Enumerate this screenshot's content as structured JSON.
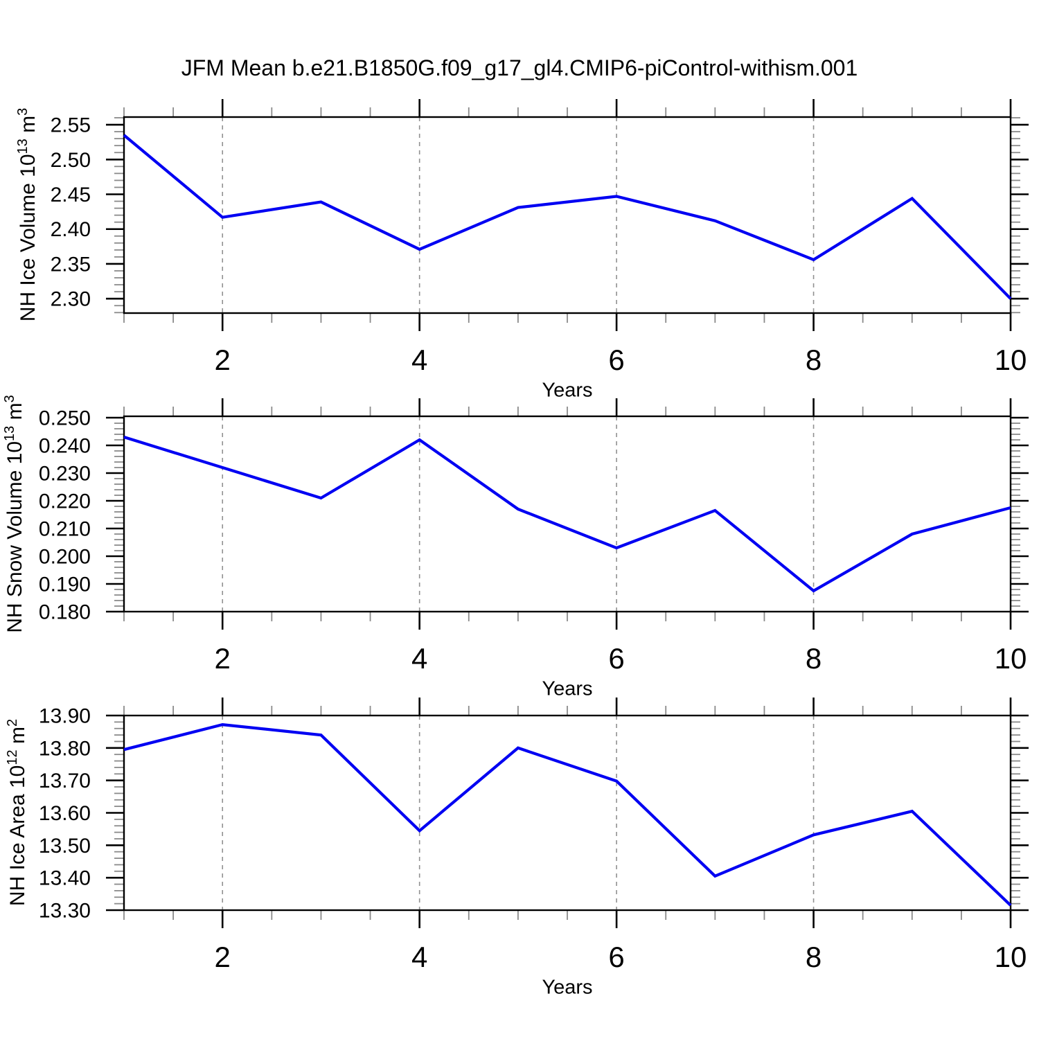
{
  "title": "JFM Mean b.e21.B1850G.f09_g17_gl4.CMIP6-piControl-withism.001",
  "xlabel": "Years",
  "colors": {
    "background": "#ffffff",
    "line": "#0000f2",
    "axis": "#000000",
    "grid": "#909090",
    "minor_tick": "#8a8a8a",
    "text": "#000000"
  },
  "chart_data": [
    {
      "type": "line",
      "id": "nh-ice-volume",
      "ylabel_plain": "NH Ice Volume 10^13 m^3",
      "ylabel_parts": {
        "base": "NH Ice Volume 10",
        "exp": "13",
        "unit": " m",
        "unit_exp": "3"
      },
      "xlabel": "Years",
      "x": [
        1,
        2,
        3,
        4,
        5,
        6,
        7,
        8,
        9,
        10
      ],
      "values": [
        2.535,
        2.417,
        2.439,
        2.371,
        2.431,
        2.447,
        2.412,
        2.356,
        2.444,
        2.3
      ],
      "ylim": [
        2.2793,
        2.561
      ],
      "xlim": [
        1,
        10
      ],
      "yticks": {
        "major_values": [
          2.55,
          2.5,
          2.45,
          2.4,
          2.35,
          2.3
        ],
        "major_labels": [
          "2.55",
          "2.50",
          "2.45",
          "2.40",
          "2.35",
          "2.30"
        ],
        "minor_step": 0.01
      },
      "xticks": {
        "major": [
          2,
          4,
          6,
          8,
          10
        ],
        "major_labels": [
          "2",
          "4",
          "6",
          "8",
          "10"
        ],
        "minor_step": 0.5
      },
      "grid": true,
      "grid_years": [
        2,
        4,
        6,
        8
      ]
    },
    {
      "type": "line",
      "id": "nh-snow-volume",
      "ylabel_plain": "NH Snow Volume 10^13 m^3",
      "ylabel_parts": {
        "base": "NH Snow Volume 10",
        "exp": "13",
        "unit": " m",
        "unit_exp": "3"
      },
      "xlabel": "Years",
      "x": [
        1,
        2,
        3,
        4,
        5,
        6,
        7,
        8,
        9,
        10
      ],
      "values": [
        0.243,
        0.232,
        0.221,
        0.242,
        0.217,
        0.203,
        0.2165,
        0.1875,
        0.208,
        0.2175
      ],
      "ylim": [
        0.18,
        0.2505
      ],
      "xlim": [
        1,
        10
      ],
      "yticks": {
        "major_values": [
          0.25,
          0.24,
          0.23,
          0.22,
          0.21,
          0.2,
          0.19,
          0.18
        ],
        "major_labels": [
          "0.250",
          "0.240",
          "0.230",
          "0.220",
          "0.210",
          "0.200",
          "0.190",
          "0.180"
        ],
        "minor_step": 0.002
      },
      "xticks": {
        "major": [
          2,
          4,
          6,
          8,
          10
        ],
        "major_labels": [
          "2",
          "4",
          "6",
          "8",
          "10"
        ],
        "minor_step": 0.5
      },
      "grid": true,
      "grid_years": [
        2,
        4,
        6,
        8
      ]
    },
    {
      "type": "line",
      "id": "nh-ice-area",
      "ylabel_plain": "NH Ice Area 10^12 m^2",
      "ylabel_parts": {
        "base": "NH Ice Area 10",
        "exp": "12",
        "unit": " m",
        "unit_exp": "2"
      },
      "xlabel": "Years",
      "x": [
        1,
        2,
        3,
        4,
        5,
        6,
        7,
        8,
        9,
        10
      ],
      "values": [
        13.795,
        13.872,
        13.84,
        13.545,
        13.8,
        13.698,
        13.405,
        13.532,
        13.605,
        13.315
      ],
      "ylim": [
        13.3,
        13.9
      ],
      "xlim": [
        1,
        10
      ],
      "yticks": {
        "major_values": [
          13.9,
          13.8,
          13.7,
          13.6,
          13.5,
          13.4,
          13.3
        ],
        "major_labels": [
          "13.90",
          "13.80",
          "13.70",
          "13.60",
          "13.50",
          "13.40",
          "13.30"
        ],
        "minor_step": 0.02
      },
      "xticks": {
        "major": [
          2,
          4,
          6,
          8,
          10
        ],
        "major_labels": [
          "2",
          "4",
          "6",
          "8",
          "10"
        ],
        "minor_step": 0.5
      },
      "grid": true,
      "grid_years": [
        2,
        4,
        6,
        8
      ]
    }
  ]
}
